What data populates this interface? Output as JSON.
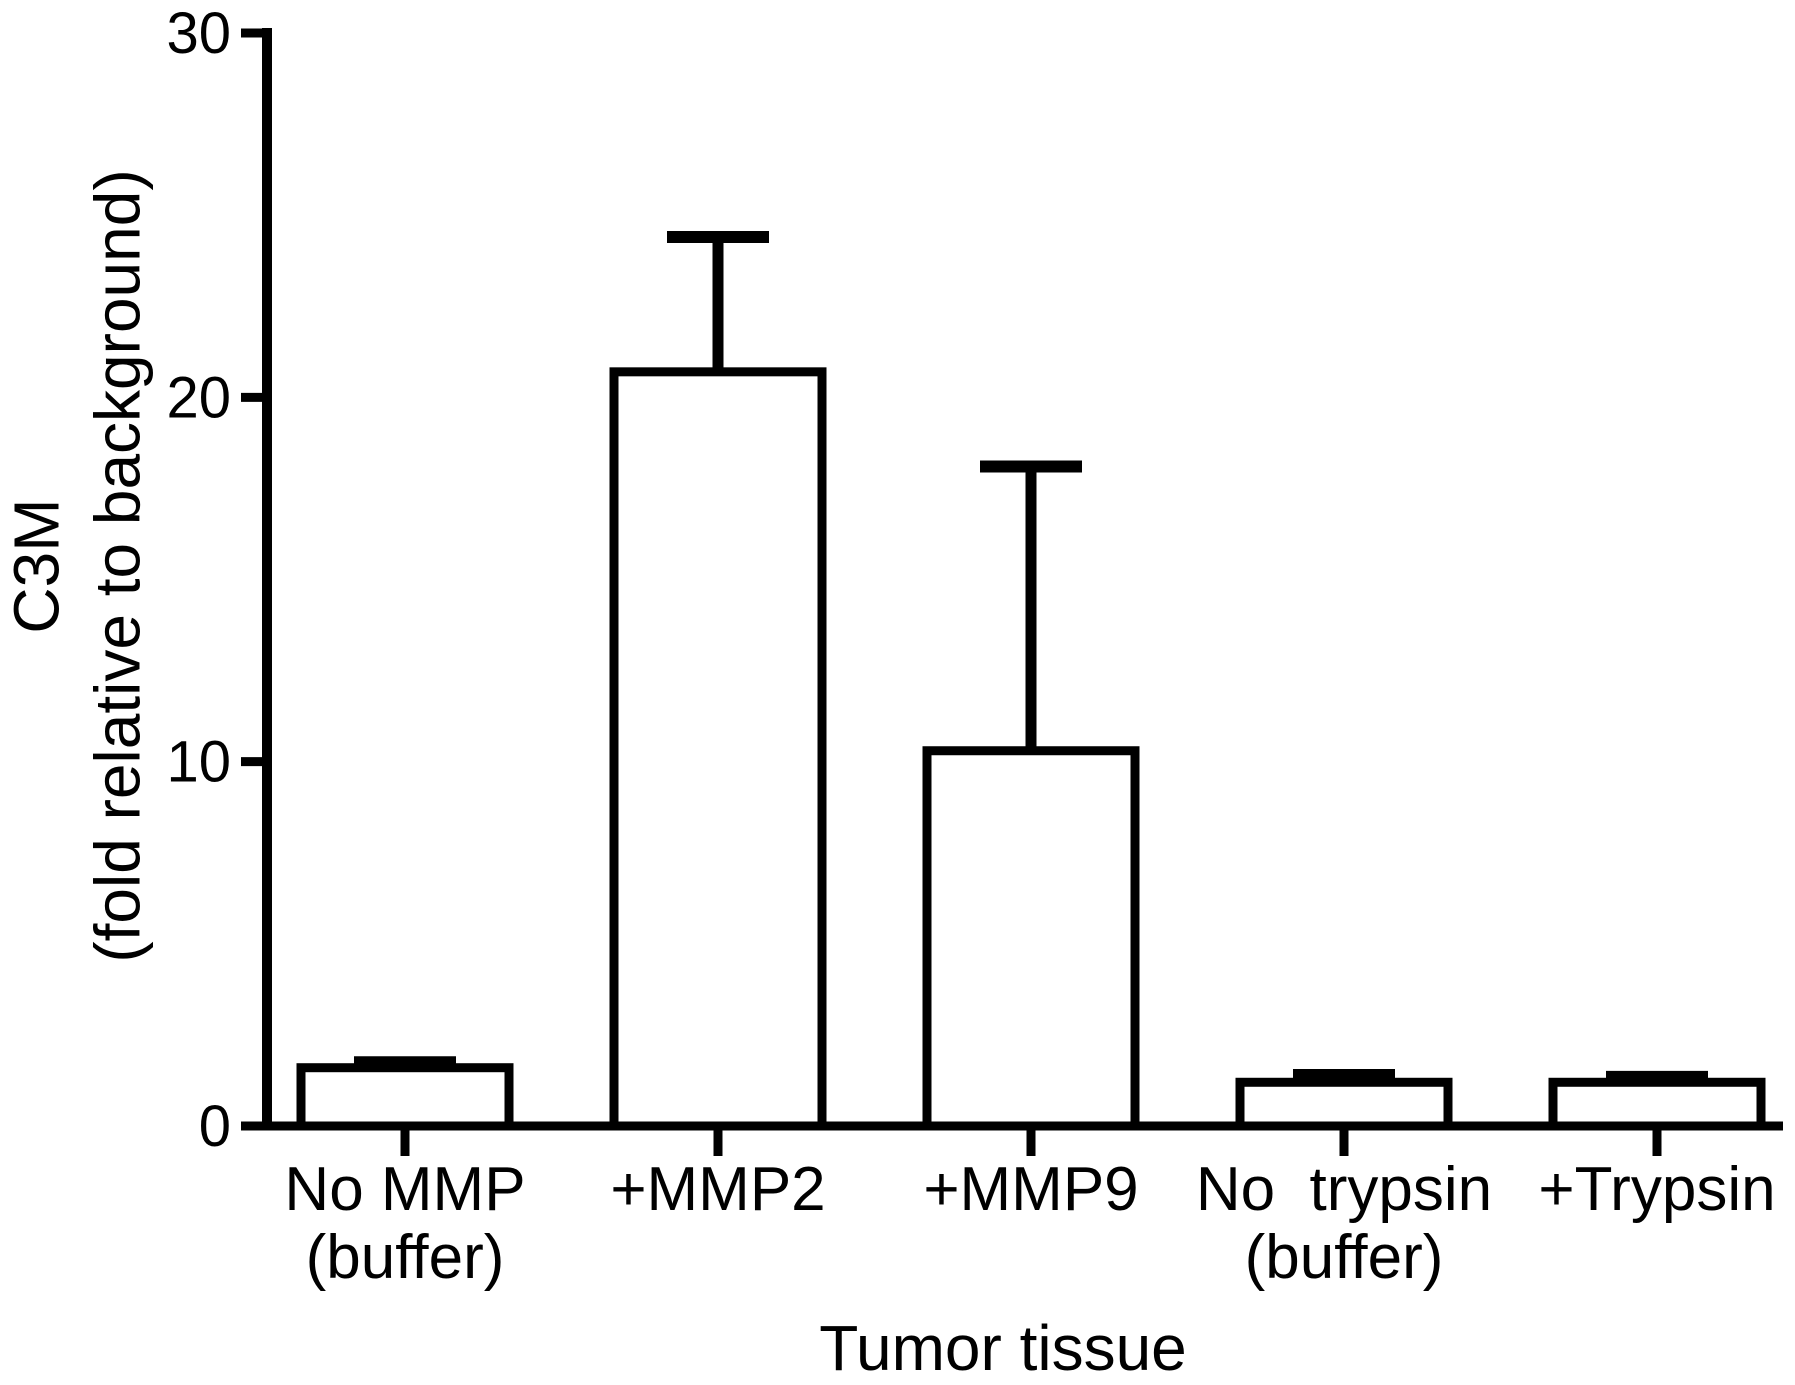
{
  "figure": {
    "background": "#ffffff",
    "ink_color": "#000000"
  },
  "chart_data": {
    "type": "bar",
    "title": "",
    "xlabel": "Tumor tissue",
    "ylabel": "C3M (fold relative to background)",
    "ylabel_lines": [
      "C3M",
      "(fold relative to background)"
    ],
    "categories": [
      "No MMP (buffer)",
      "+MMP2",
      "+MMP9",
      "No  trypsin (buffer)",
      "+Trypsin"
    ],
    "category_lines": [
      [
        "No MMP",
        "(buffer)"
      ],
      [
        "+MMP2"
      ],
      [
        "+MMP9"
      ],
      [
        "No  trypsin",
        "(buffer)"
      ],
      [
        "+Trypsin"
      ]
    ],
    "values": [
      1.6,
      20.7,
      10.3,
      1.2,
      1.2
    ],
    "errors_plus": [
      0.15,
      3.7,
      7.8,
      0.2,
      0.15
    ],
    "yticks": [
      0,
      10,
      20,
      30
    ],
    "ylim": [
      0,
      30
    ],
    "bar_fill": "#ffffff",
    "bar_outline": "#000000",
    "grid": false,
    "legend": null,
    "error_bar_style": "upward-only-with-caps"
  }
}
